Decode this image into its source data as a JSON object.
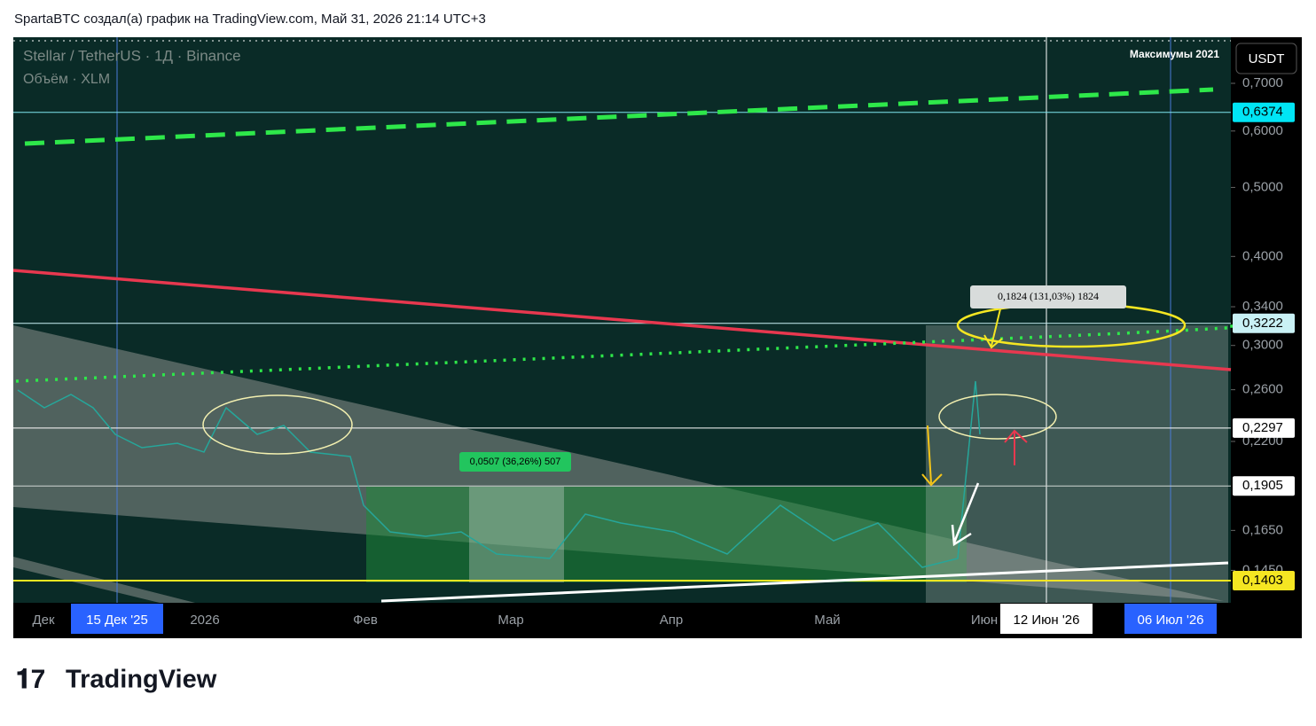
{
  "header": {
    "title": "SpartaBTC создал(а) график на TradingView.com, Май 31, 2026 21:14 UTC+3"
  },
  "legend": {
    "symbol": "Stellar / TetherUS · 1Д · Binance",
    "volume": "Объём · XLM"
  },
  "annotation": "Максимумы 2021",
  "currency": "USDT",
  "price_axis": [
    {
      "value": 0.7,
      "label": "0,7000"
    },
    {
      "value": 0.6,
      "label": "0,6000"
    },
    {
      "value": 0.5,
      "label": "0,5000"
    },
    {
      "value": 0.4,
      "label": "0,4000"
    },
    {
      "value": 0.34,
      "label": "0,3400"
    },
    {
      "value": 0.3,
      "label": "0,3000"
    },
    {
      "value": 0.26,
      "label": "0,2600"
    },
    {
      "value": 0.22,
      "label": "0,2200"
    },
    {
      "value": 0.165,
      "label": "0,1650"
    },
    {
      "value": 0.145,
      "label": "0,1450"
    }
  ],
  "price_levels": [
    {
      "value": 0.6374,
      "label": "0,6374"
    },
    {
      "value": 0.3222,
      "label": "0,3222"
    },
    {
      "value": 0.2297,
      "label": "0,2297"
    },
    {
      "value": 0.1905,
      "label": "0,1905"
    },
    {
      "value": 0.1403,
      "label": "0,1403"
    }
  ],
  "time_axis": [
    "Дек",
    "15 Дек '25",
    "2026",
    "Фев",
    "Мар",
    "Апр",
    "Май",
    "Июн",
    "12 Июн '26",
    "06 Июл '26"
  ],
  "measures": [
    "0,0507 (36,26%) 507",
    "0,1824 (131,03%) 1824"
  ],
  "logo": "TradingView"
}
